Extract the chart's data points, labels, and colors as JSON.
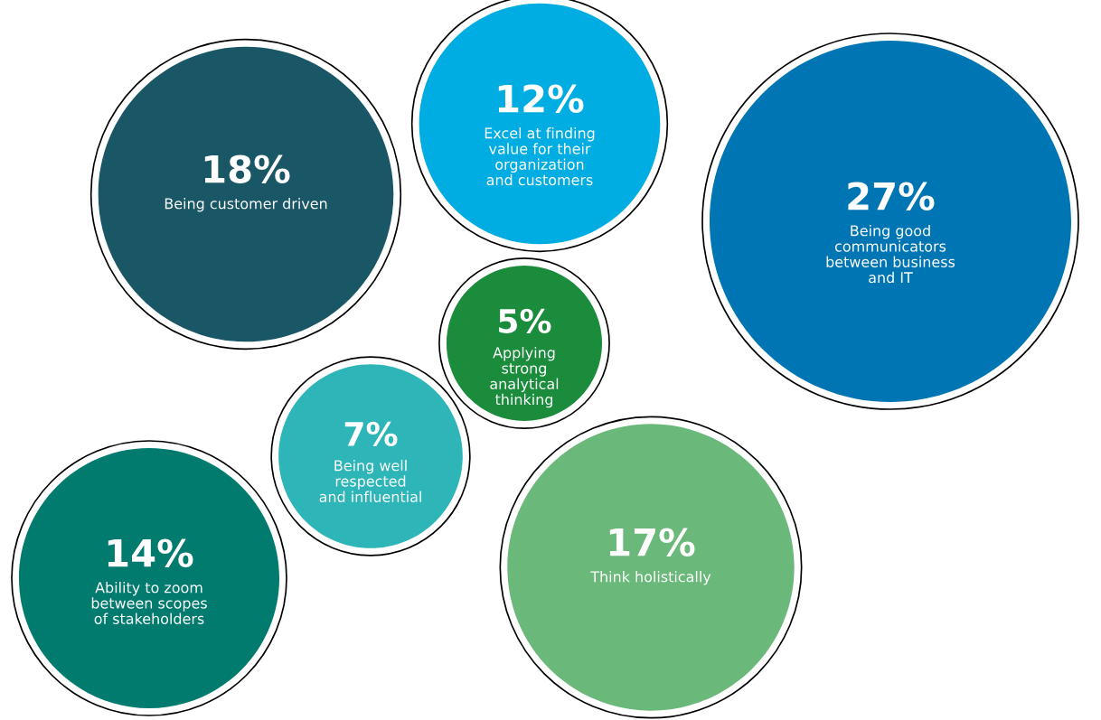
{
  "chart_data": {
    "type": "other",
    "categories": [
      "Being customer driven",
      "Excel at finding\nvalue for their\norganization\nand customers",
      "Being good\ncommunicators\nbetween business\nand IT",
      "Applying\nstrong\nanalytical\nthinking",
      "Being well\nrespected\nand influential",
      "Ability to zoom\nbetween scopes\nof stakeholders",
      "Think holistically"
    ],
    "values": [
      18,
      12,
      27,
      5,
      7,
      14,
      17
    ],
    "value_labels": [
      "18%",
      "12%",
      "27%",
      "5%",
      "7%",
      "14%",
      "17%"
    ],
    "colors": [
      "#1a5766",
      "#00ade2",
      "#0075b4",
      "#1a8c3c",
      "#2db5b8",
      "#007b6e",
      "#6ab97b"
    ]
  }
}
